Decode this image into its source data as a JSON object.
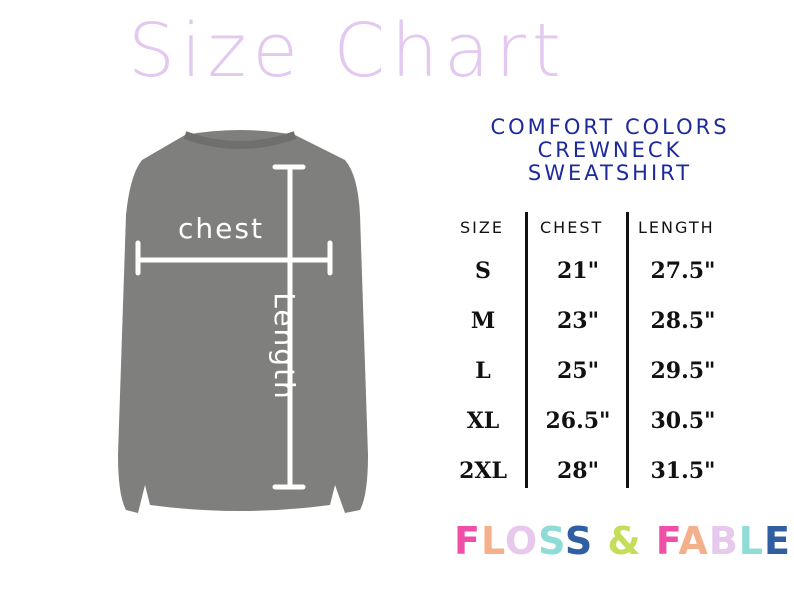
{
  "title": "Size Chart",
  "labels": {
    "chest": "chest",
    "length": "Length"
  },
  "product": {
    "line1": "COMFORT COLORS",
    "line2": "CREWNECK",
    "line3": "SWEATSHIRT"
  },
  "table": {
    "headers": [
      "SIZE",
      "CHEST",
      "LENGTH"
    ],
    "rows": [
      {
        "size": "S",
        "chest": "21\"",
        "length": "27.5\""
      },
      {
        "size": "M",
        "chest": "23\"",
        "length": "28.5\""
      },
      {
        "size": "L",
        "chest": "25\"",
        "length": "29.5\""
      },
      {
        "size": "XL",
        "chest": "26.5\"",
        "length": "30.5\""
      },
      {
        "size": "2XL",
        "chest": "28\"",
        "length": "31.5\""
      }
    ]
  },
  "logo": {
    "text": "FLOSS & FABLE",
    "colors": [
      "#f04fa8",
      "#f4b08a",
      "#e6c9ec",
      "#8fdcd6",
      "#2f5fa0",
      "#ffffff",
      "#c5de5a",
      "#ffffff",
      "#f04fa8",
      "#f4b08a",
      "#e6c9ec",
      "#8fdcd6",
      "#2f5fa0"
    ]
  },
  "colors": {
    "title": "#e3c8ef",
    "product": "#1c2a9a",
    "shirt": "#7f7f7d"
  }
}
